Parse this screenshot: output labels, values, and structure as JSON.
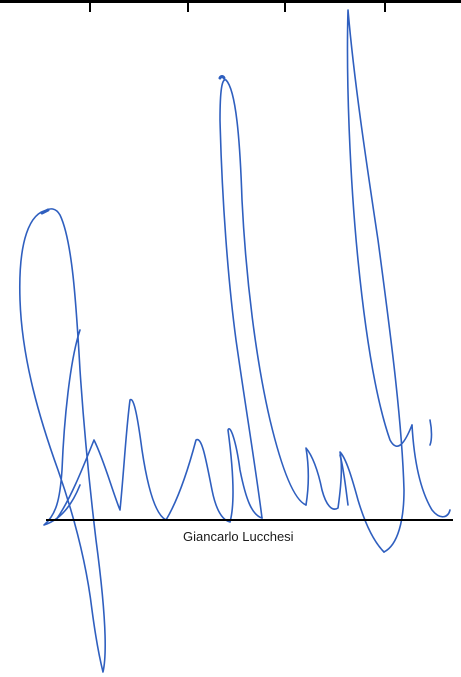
{
  "signatory": {
    "name": "Giancarlo Lucchesi"
  },
  "colors": {
    "ink": "#2f5fbf",
    "rule": "#000000",
    "background": "#ffffff"
  }
}
